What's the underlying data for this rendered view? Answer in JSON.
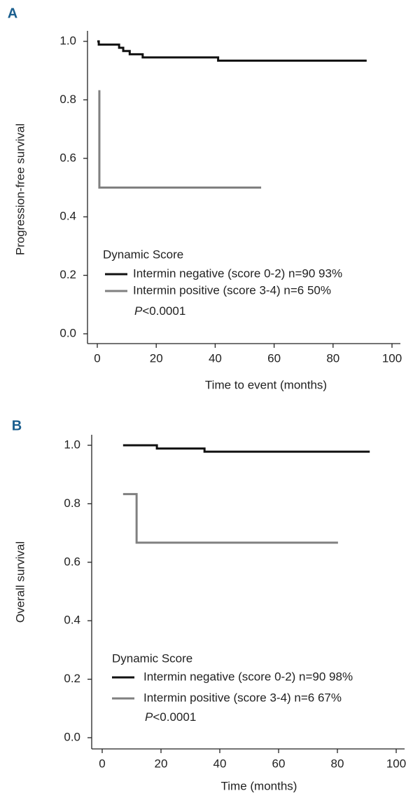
{
  "chart_data": [
    {
      "type": "line",
      "step": "post",
      "panel_label": "A",
      "xlabel": "Time to event (months)",
      "ylabel": "Progression-free survival",
      "xlim": [
        0,
        100
      ],
      "xticks": [
        0,
        20,
        40,
        60,
        80,
        100
      ],
      "ylim": [
        0,
        1
      ],
      "yticks": [
        {
          "value": 0,
          "label": "0.0"
        },
        0.2,
        0.4,
        0.6,
        0.8,
        {
          "value": 1,
          "label": "1.0"
        }
      ],
      "legend_title": "Dynamic Score",
      "annotation": "P<0.0001",
      "series": [
        {
          "name": "Intermin negative (score 0-2) n=90 93%",
          "color": "#111111",
          "x": [
            0,
            0.5,
            7.4,
            8.8,
            11,
            15.4,
            41,
            91.4
          ],
          "values": [
            1.0,
            0.989,
            0.978,
            0.967,
            0.956,
            0.945,
            0.934,
            0.934
          ]
        },
        {
          "name": "Intermin positive (score 3-4) n=6 50%",
          "color": "#808080",
          "x": [
            0.7,
            0.7,
            55.6
          ],
          "values": [
            0.833,
            0.5,
            0.5
          ]
        }
      ]
    },
    {
      "type": "line",
      "step": "post",
      "panel_label": "B",
      "xlabel": "Time (months)",
      "ylabel": "Overall survival",
      "xlim": [
        0,
        100
      ],
      "xticks": [
        0,
        20,
        40,
        60,
        80,
        100
      ],
      "ylim": [
        0,
        1
      ],
      "yticks": [
        {
          "value": 0,
          "label": "0.0"
        },
        0.2,
        0.4,
        0.6,
        0.8,
        {
          "value": 1,
          "label": "1.0"
        }
      ],
      "legend_title": "Dynamic Score",
      "annotation": "P<0.0001",
      "series": [
        {
          "name": "Intermin negative (score 0-2) n=90 98%",
          "color": "#111111",
          "x": [
            7.1,
            18.6,
            34.8,
            91
          ],
          "values": [
            1.0,
            0.989,
            0.978,
            0.978
          ]
        },
        {
          "name": "Intermin positive (score 3-4) n=6 67%",
          "color": "#808080",
          "x": [
            7.1,
            11.7,
            80.2
          ],
          "values": [
            0.833,
            0.667,
            0.667
          ]
        }
      ]
    }
  ]
}
